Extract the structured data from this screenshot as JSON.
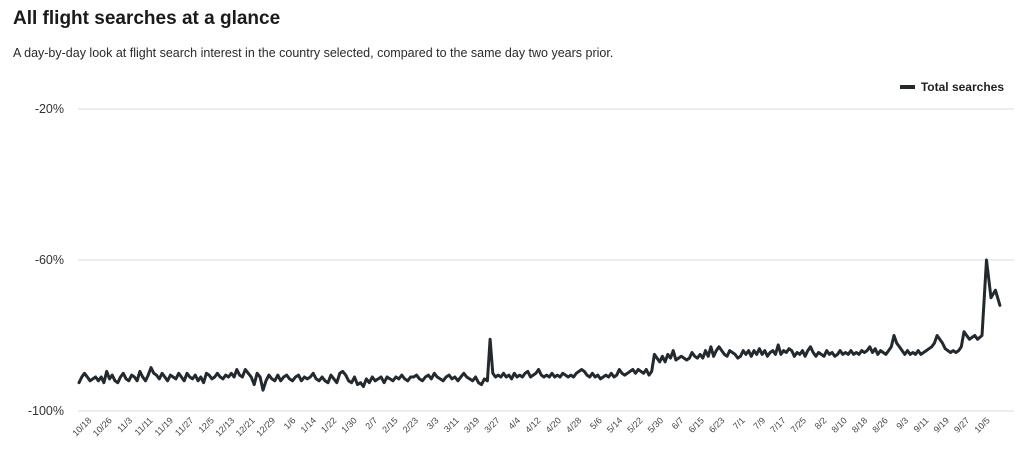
{
  "page": {
    "title": "All flight searches at a glance",
    "subtitle": "A day-by-day look at flight search interest in the country selected, compared to the same day two years prior."
  },
  "chart_data": {
    "type": "line",
    "legend": {
      "position": "top-right",
      "entries": [
        "Total searches"
      ]
    },
    "colors": {
      "line": "#24292e",
      "grid": "#d7dde2"
    },
    "ylim": [
      -100,
      -20
    ],
    "yticks": [
      -20,
      -60,
      -100
    ],
    "ytick_labels": [
      "-20%",
      "-60%",
      "-100%"
    ],
    "grid": true,
    "x_tick_labels": [
      "10/18",
      "10/26",
      "11/3",
      "11/11",
      "11/19",
      "11/27",
      "12/5",
      "12/13",
      "12/21",
      "12/29",
      "1/6",
      "1/14",
      "1/22",
      "1/30",
      "2/7",
      "2/15",
      "2/23",
      "3/3",
      "3/11",
      "3/19",
      "3/27",
      "4/4",
      "4/12",
      "4/20",
      "4/28",
      "5/6",
      "5/14",
      "5/22",
      "5/30",
      "6/7",
      "6/15",
      "6/23",
      "7/1",
      "7/9",
      "7/17",
      "7/25",
      "8/2",
      "8/10",
      "8/18",
      "8/26",
      "9/3",
      "9/11",
      "9/19",
      "9/27",
      "10/5"
    ],
    "series": [
      {
        "name": "Total searches",
        "segments": [
          {
            "from_tick": 0,
            "to_tick": 8,
            "values": [
              -92.5,
              -91,
              -90,
              -91,
              -92,
              -91.5,
              -91,
              -92,
              -91,
              -92.5,
              -89.5,
              -91.5,
              -90.5,
              -92,
              -92.5,
              -91,
              -90,
              -91.5,
              -92,
              -90.5,
              -91,
              -92,
              -89.5,
              -91,
              -92,
              -90.5,
              -88.5,
              -90,
              -90.5,
              -91.5,
              -90,
              -91,
              -92,
              -90.5,
              -91,
              -91.5,
              -90,
              -91,
              -92,
              -90,
              -91,
              -91.5,
              -90.5,
              -92,
              -91,
              -92.5,
              -90,
              -90.5,
              -91.5,
              -91,
              -90,
              -91,
              -91.5,
              -90.5,
              -91,
              -90,
              -91,
              -89,
              -90.5,
              -91
            ]
          },
          {
            "from_tick": 8,
            "to_tick": 20,
            "values": [
              -91,
              -89,
              -90,
              -91,
              -93,
              -90,
              -91,
              -94.5,
              -92,
              -90.5,
              -91.5,
              -92,
              -90.5,
              -92,
              -91,
              -90.5,
              -91.5,
              -92,
              -91,
              -90.5,
              -92,
              -91,
              -91.5,
              -91,
              -90,
              -91.5,
              -92,
              -91,
              -92,
              -92.5,
              -90.5,
              -91.5,
              -92.5,
              -90,
              -89.5,
              -90.5,
              -92,
              -92.5,
              -91,
              -93,
              -92.5,
              -93.5,
              -91.5,
              -92.5,
              -91,
              -92,
              -91.5,
              -91,
              -92.5,
              -91,
              -91.5,
              -92,
              -91,
              -91.5,
              -90.5,
              -91.5,
              -92,
              -91,
              -91,
              -90.5,
              -91.5,
              -92,
              -91,
              -90.5,
              -91.5,
              -90,
              -91,
              -91.5,
              -92,
              -91,
              -90.5,
              -91.5,
              -91,
              -92,
              -91,
              -90,
              -91,
              -91.5,
              -92,
              -91,
              -92.5,
              -93,
              -91.5,
              -92
            ]
          },
          {
            "from_tick": 20,
            "to_tick": 44,
            "values": [
              -92,
              -81,
              -90,
              -91,
              -90.5,
              -91,
              -90,
              -91,
              -90.5,
              -91.5,
              -90,
              -91,
              -90.5,
              -91,
              -90,
              -89.5,
              -91,
              -90.5,
              -90,
              -89,
              -90.5,
              -91,
              -90.5,
              -91,
              -90,
              -91,
              -90.5,
              -91,
              -90,
              -90.5,
              -91,
              -90.5,
              -91,
              -90,
              -89.5,
              -89,
              -89.5,
              -90.5,
              -91,
              -90,
              -91,
              -90.5,
              -91.5,
              -91,
              -90.5,
              -91,
              -90,
              -91,
              -90.5,
              -89,
              -90,
              -90.5,
              -90,
              -89.5,
              -89,
              -90,
              -89,
              -89.5,
              -90,
              -89,
              -90.5,
              -89.5,
              -85,
              -86,
              -87,
              -85.5,
              -87,
              -85,
              -86,
              -84,
              -86.5,
              -86,
              -85.5,
              -86,
              -86.5,
              -86,
              -84.5,
              -85.5,
              -86,
              -85,
              -86,
              -84,
              -85.5,
              -83,
              -85.5,
              -84,
              -83,
              -84,
              -85,
              -85.5,
              -84,
              -84.5,
              -85,
              -86,
              -85.5,
              -84,
              -85,
              -84,
              -85.5,
              -84,
              -85,
              -83.5,
              -85,
              -84,
              -85.5,
              -84.5,
              -84,
              -85,
              -82.5,
              -85,
              -84,
              -84.5,
              -83.5,
              -84,
              -85.5,
              -84.5,
              -85,
              -84,
              -85.5,
              -84,
              -83,
              -84.5,
              -85.5,
              -84.5,
              -85,
              -85.5,
              -84,
              -85,
              -84.5,
              -85.5,
              -85,
              -84,
              -85,
              -84.5,
              -85,
              -84,
              -85,
              -84.5,
              -85,
              -84,
              -84.5,
              -84,
              -83,
              -84.5,
              -83.5,
              -85,
              -84,
              -84.5,
              -85,
              -84,
              -83,
              -80,
              -82,
              -83,
              -84,
              -85,
              -84,
              -85,
              -84.5,
              -85,
              -84,
              -85,
              -84.5,
              -84,
              -83.5,
              -83,
              -82,
              -80,
              -81,
              -82,
              -83.5,
              -84,
              -84.5,
              -84,
              -84.5,
              -84,
              -83,
              -79,
              -80,
              -81,
              -80.5,
              -80,
              -81
            ]
          },
          {
            "from_tick": 44,
            "to_tick": 45.1,
            "values": [
              -81,
              -80,
              -60,
              -70,
              -68,
              -72
            ]
          }
        ]
      }
    ]
  }
}
